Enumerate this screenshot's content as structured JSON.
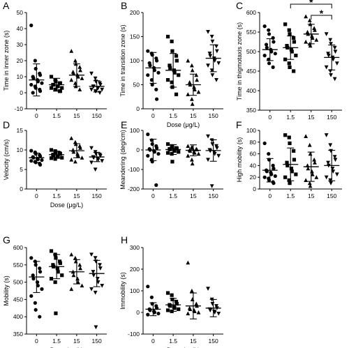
{
  "figure": {
    "colors": {
      "marker": "#000000",
      "axis": "#000000"
    },
    "markers": [
      "circle",
      "square",
      "triangle-up",
      "triangle-down"
    ]
  },
  "chart_data": [
    {
      "panel": "A",
      "type": "scatter",
      "ylabel": "Time in inner zone (s)",
      "xlabel": "",
      "categories": [
        "0",
        "1.5",
        "15",
        "150"
      ],
      "ylim": [
        -10,
        50
      ],
      "yticks": [
        -10,
        0,
        10,
        20,
        30,
        40,
        50
      ],
      "mean": [
        8,
        5,
        11,
        4
      ],
      "sd": [
        10,
        4,
        7,
        3.5
      ],
      "points": [
        [
          42,
          20,
          15,
          12,
          11,
          10,
          9,
          8,
          7,
          6,
          5,
          4,
          3,
          2,
          1,
          0
        ],
        [
          10,
          8,
          7,
          6,
          6,
          5,
          5,
          4,
          4,
          3,
          3,
          2,
          2,
          1,
          1
        ],
        [
          26,
          20,
          18,
          16,
          14,
          13,
          12,
          11,
          10,
          9,
          8,
          6,
          4,
          2
        ],
        [
          12,
          9,
          7,
          6,
          5,
          4,
          4,
          3,
          3,
          2,
          2,
          1,
          1,
          0
        ]
      ]
    },
    {
      "panel": "B",
      "type": "scatter",
      "ylabel": "Time in transition zone (s)",
      "xlabel": "Dose (μg/L)",
      "categories": [
        "0",
        "1.5",
        "15",
        "150"
      ],
      "ylim": [
        0,
        200
      ],
      "yticks": [
        0,
        50,
        100,
        150,
        200
      ],
      "mean": [
        85,
        80,
        50,
        105
      ],
      "sd": [
        32,
        35,
        22,
        28
      ],
      "points": [
        [
          120,
          115,
          112,
          105,
          100,
          95,
          90,
          85,
          80,
          75,
          70,
          60,
          50,
          40,
          20
        ],
        [
          150,
          140,
          120,
          110,
          100,
          90,
          85,
          80,
          75,
          70,
          60,
          55,
          45,
          30
        ],
        [
          100,
          90,
          80,
          70,
          60,
          55,
          50,
          45,
          40,
          35,
          30,
          20,
          10
        ],
        [
          160,
          150,
          140,
          130,
          120,
          115,
          110,
          105,
          100,
          95,
          90,
          80,
          70,
          60
        ]
      ]
    },
    {
      "panel": "C",
      "type": "scatter",
      "ylabel": "Time in thigmotaxis zone (s)",
      "xlabel": "",
      "categories": [
        "0",
        "1.5",
        "15",
        "150"
      ],
      "ylim": [
        350,
        600
      ],
      "yticks": [
        350,
        400,
        450,
        500,
        550,
        600
      ],
      "mean": [
        505,
        510,
        545,
        485
      ],
      "sd": [
        28,
        30,
        25,
        32
      ],
      "significance": [
        {
          "from": "1.5",
          "to": "150",
          "label": "*"
        },
        {
          "from": "15",
          "to": "150",
          "label": "*"
        }
      ],
      "points": [
        [
          565,
          555,
          545,
          535,
          525,
          518,
          510,
          505,
          500,
          495,
          490,
          480,
          470,
          460
        ],
        [
          570,
          555,
          545,
          535,
          525,
          515,
          510,
          505,
          500,
          490,
          480,
          470,
          460,
          450
        ],
        [
          590,
          580,
          570,
          560,
          555,
          550,
          545,
          540,
          535,
          530,
          525,
          520,
          515
        ],
        [
          545,
          530,
          520,
          510,
          500,
          495,
          490,
          485,
          480,
          470,
          460,
          450,
          440,
          430
        ]
      ]
    },
    {
      "panel": "D",
      "type": "scatter",
      "ylabel": "Velocity (cm/s)",
      "xlabel": "Dose (μg/L)",
      "categories": [
        "0",
        "1.5",
        "15",
        "150"
      ],
      "ylim": [
        0,
        15
      ],
      "yticks": [
        0,
        5,
        10,
        15
      ],
      "mean": [
        8,
        8.8,
        9.8,
        8.2
      ],
      "sd": [
        1.2,
        0.9,
        1.8,
        1.2
      ],
      "points": [
        [
          9.8,
          9.4,
          9.0,
          8.7,
          8.4,
          8.2,
          8.0,
          7.8,
          7.6,
          7.4,
          7.2,
          7.0,
          6.8,
          6.5,
          6.2
        ],
        [
          10.0,
          9.7,
          9.4,
          9.2,
          9.0,
          8.8,
          8.6,
          8.4,
          8.2,
          8.0,
          7.9,
          7.7
        ],
        [
          13.0,
          12.0,
          11.5,
          11.0,
          10.5,
          10.0,
          9.5,
          9.0,
          8.5,
          8.0,
          7.5,
          7.0
        ],
        [
          10.5,
          9.5,
          9.0,
          8.8,
          8.5,
          8.2,
          8.0,
          7.8,
          7.5,
          7.2,
          6.8,
          5.0
        ]
      ]
    },
    {
      "panel": "E",
      "type": "scatter",
      "ylabel": "Meandering (deg/cm)",
      "xlabel": "",
      "categories": [
        "0",
        "1.5",
        "15",
        "150"
      ],
      "ylim": [
        -200,
        100
      ],
      "yticks": [
        -200,
        -100,
        0,
        100
      ],
      "mean": [
        0,
        2,
        -2,
        -3
      ],
      "sd": [
        55,
        25,
        28,
        55
      ],
      "points": [
        [
          80,
          50,
          30,
          20,
          10,
          5,
          0,
          -5,
          -10,
          -20,
          -30,
          -50,
          -60,
          -180
        ],
        [
          30,
          20,
          15,
          10,
          8,
          5,
          3,
          0,
          -5,
          -10,
          -15,
          -20,
          -60
        ],
        [
          20,
          15,
          10,
          5,
          2,
          0,
          -5,
          -10,
          -15,
          -20,
          -30,
          -50,
          -70
        ],
        [
          70,
          50,
          30,
          20,
          10,
          0,
          -5,
          -10,
          -20,
          -30,
          -50,
          -185
        ]
      ]
    },
    {
      "panel": "F",
      "type": "scatter",
      "ylabel": "High mobility (s)",
      "xlabel": "",
      "categories": [
        "0",
        "1.5",
        "15",
        "150"
      ],
      "ylim": [
        0,
        100
      ],
      "yticks": [
        0,
        20,
        40,
        60,
        80,
        100
      ],
      "mean": [
        32,
        42,
        38,
        40
      ],
      "sd": [
        20,
        28,
        25,
        26
      ],
      "points": [
        [
          78,
          60,
          50,
          40,
          35,
          32,
          30,
          28,
          25,
          22,
          20,
          18,
          15,
          12,
          10
        ],
        [
          92,
          88,
          78,
          65,
          50,
          45,
          40,
          35,
          30,
          25,
          20,
          15,
          10
        ],
        [
          90,
          75,
          60,
          50,
          45,
          40,
          35,
          30,
          25,
          20,
          15,
          10,
          5
        ],
        [
          92,
          75,
          65,
          55,
          50,
          45,
          40,
          35,
          30,
          25,
          20,
          15,
          10
        ]
      ]
    },
    {
      "panel": "G",
      "type": "scatter",
      "ylabel": "Mobility (s)",
      "xlabel": "Dose (μg/L)",
      "categories": [
        "0",
        "1.5",
        "15",
        "150"
      ],
      "ylim": [
        350,
        600
      ],
      "yticks": [
        350,
        400,
        450,
        500,
        550,
        600
      ],
      "mean": [
        515,
        545,
        530,
        525
      ],
      "sd": [
        45,
        35,
        35,
        38
      ],
      "points": [
        [
          570,
          560,
          550,
          540,
          530,
          520,
          510,
          500,
          490,
          480,
          460,
          440,
          420,
          400
        ],
        [
          590,
          580,
          570,
          560,
          555,
          550,
          545,
          540,
          530,
          520,
          510,
          500,
          410
        ],
        [
          580,
          570,
          560,
          550,
          540,
          530,
          520,
          510,
          500,
          490,
          480
        ],
        [
          580,
          570,
          560,
          550,
          540,
          530,
          520,
          510,
          500,
          490,
          480,
          470,
          370
        ]
      ]
    },
    {
      "panel": "H",
      "type": "scatter",
      "ylabel": "Immobility (s)",
      "xlabel": "Dose (μg/L)",
      "categories": [
        "0",
        "1.5",
        "15",
        "150"
      ],
      "ylim": [
        -100,
        300
      ],
      "yticks": [
        -100,
        0,
        100,
        200,
        300
      ],
      "mean": [
        15,
        35,
        30,
        20
      ],
      "sd": [
        30,
        30,
        60,
        40
      ],
      "points": [
        [
          120,
          70,
          40,
          30,
          20,
          15,
          10,
          5,
          0,
          -5,
          -10
        ],
        [
          90,
          80,
          60,
          50,
          40,
          35,
          30,
          25,
          20,
          15,
          10,
          5
        ],
        [
          230,
          100,
          60,
          40,
          30,
          20,
          15,
          10,
          5,
          0,
          -5
        ],
        [
          110,
          60,
          40,
          30,
          20,
          15,
          10,
          5,
          0,
          -5
        ]
      ]
    }
  ]
}
